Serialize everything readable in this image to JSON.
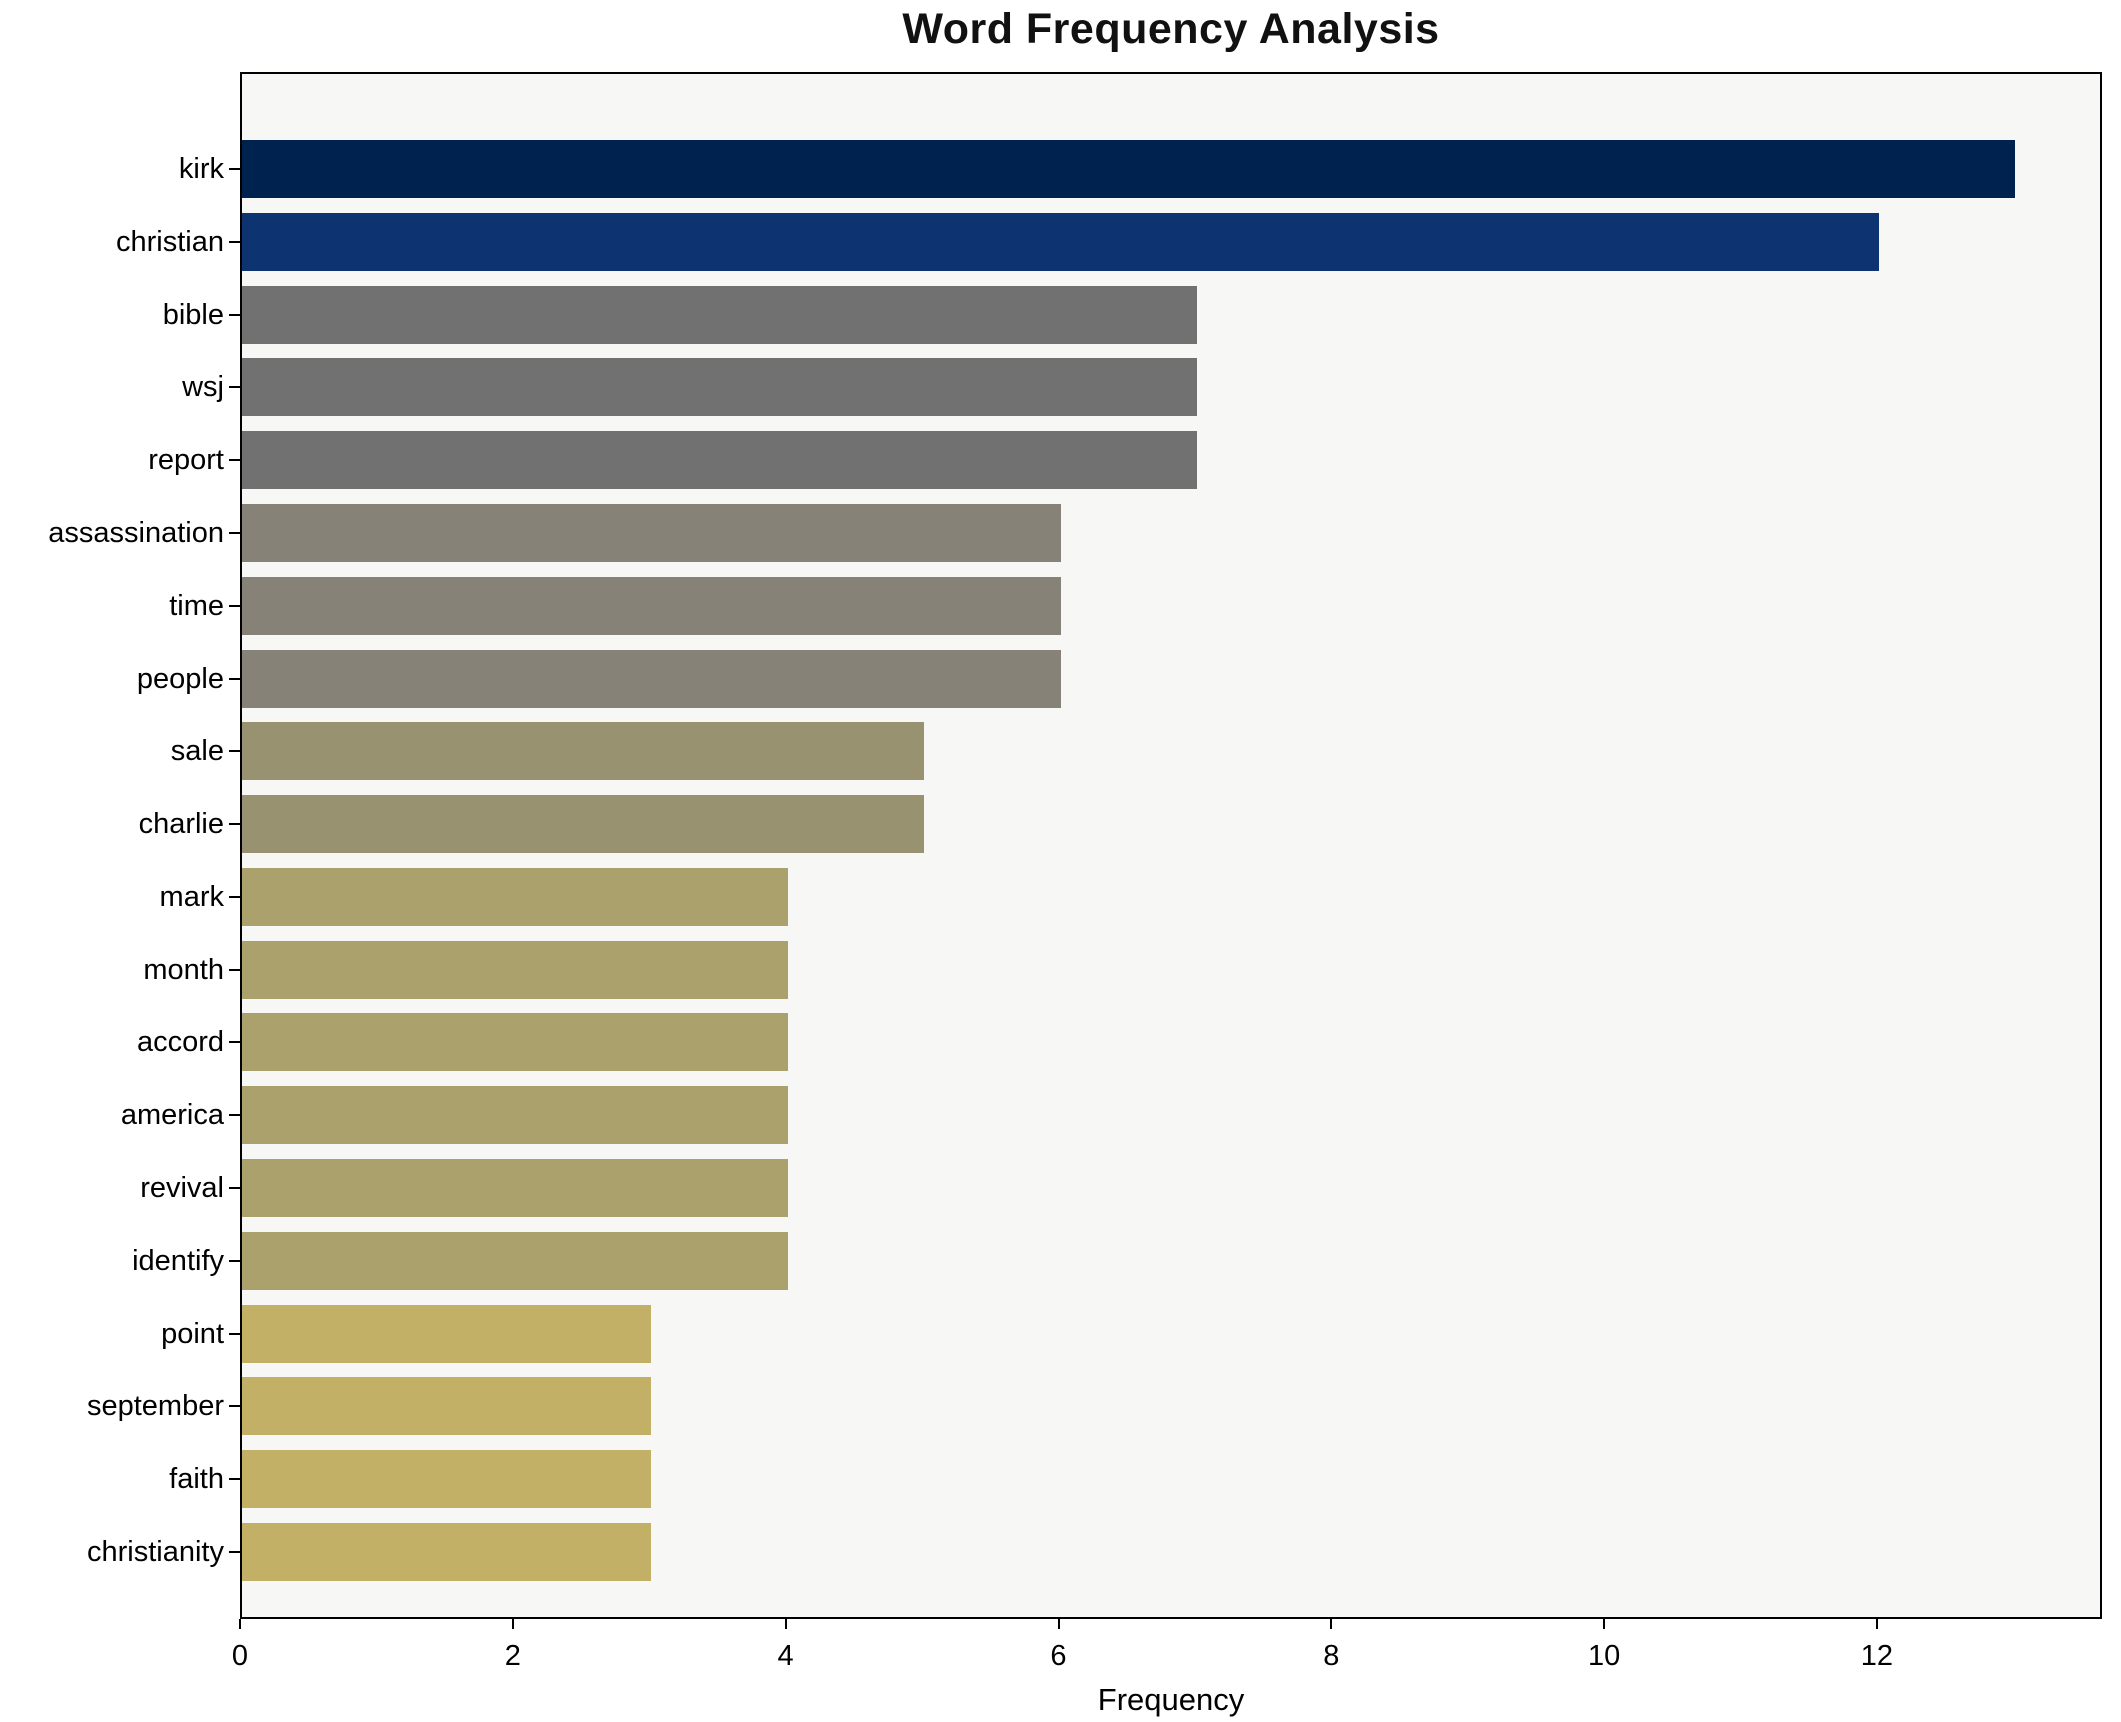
{
  "chart_data": {
    "type": "bar",
    "orientation": "horizontal",
    "title": "Word Frequency Analysis",
    "xlabel": "Frequency",
    "ylabel": "",
    "categories": [
      "kirk",
      "christian",
      "bible",
      "wsj",
      "report",
      "assassination",
      "time",
      "people",
      "sale",
      "charlie",
      "mark",
      "month",
      "accord",
      "america",
      "revival",
      "identify",
      "point",
      "september",
      "faith",
      "christianity"
    ],
    "values": [
      13,
      12,
      7,
      7,
      7,
      6,
      6,
      6,
      5,
      5,
      4,
      4,
      4,
      4,
      4,
      4,
      3,
      3,
      3,
      3
    ],
    "bar_colors": [
      "#00224e",
      "#0e3371",
      "#717172",
      "#717172",
      "#717172",
      "#868278",
      "#868278",
      "#868278",
      "#989271",
      "#989271",
      "#aba16d",
      "#aba16d",
      "#aba16d",
      "#aba16d",
      "#aba16d",
      "#aba16d",
      "#c1b066",
      "#c1b066",
      "#c1b066",
      "#c1b066"
    ],
    "xlim": [
      0,
      13.65
    ],
    "xticks": [
      0,
      2,
      4,
      6,
      8,
      10,
      12
    ],
    "grid": false,
    "legend": null,
    "plot_background": "#f7f7f6",
    "figure_background": "#ffffff",
    "spine_color": "#000000",
    "text_color": "#000000"
  }
}
